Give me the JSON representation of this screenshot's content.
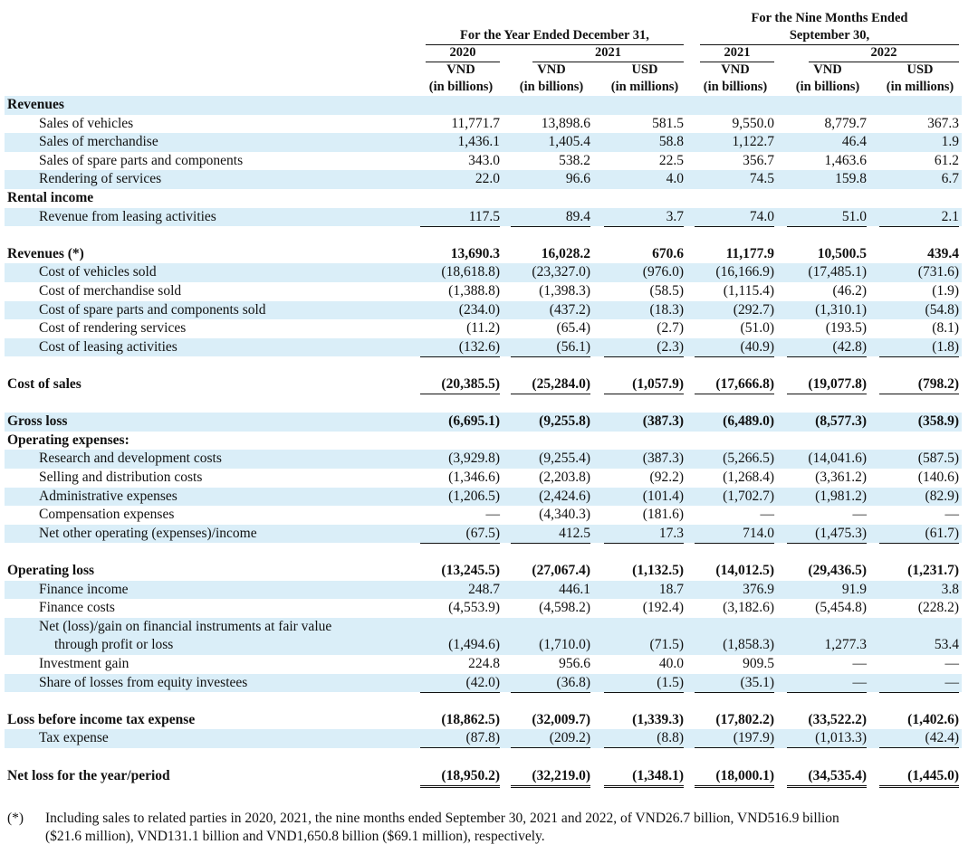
{
  "header": {
    "groups": [
      {
        "title": [
          "For the Year Ended December 31,"
        ],
        "years": [
          "2020",
          "2021"
        ]
      },
      {
        "title": [
          "For the Nine Months Ended",
          "September 30,"
        ],
        "years": [
          "2021",
          "2022"
        ]
      }
    ],
    "columns": [
      {
        "currency": "VND",
        "unit": "(in billions)"
      },
      {
        "currency": "VND",
        "unit": "(in billions)"
      },
      {
        "currency": "USD",
        "unit": "(in millions)"
      },
      {
        "currency": "VND",
        "unit": "(in billions)"
      },
      {
        "currency": "VND",
        "unit": "(in billions)"
      },
      {
        "currency": "USD",
        "unit": "(in millions)"
      }
    ]
  },
  "rows": [
    {
      "label": [
        "Revenues"
      ]
    },
    {
      "label": [
        "Sales of vehicles"
      ],
      "values": [
        "11,771.7",
        "13,898.6",
        "581.5",
        "9,550.0",
        "8,779.7",
        "367.3"
      ]
    },
    {
      "label": [
        "Sales of merchandise"
      ],
      "values": [
        "1,436.1",
        "1,405.4",
        "58.8",
        "1,122.7",
        "46.4",
        "1.9"
      ]
    },
    {
      "label": [
        "Sales of spare parts and components"
      ],
      "values": [
        "343.0",
        "538.2",
        "22.5",
        "356.7",
        "1,463.6",
        "61.2"
      ]
    },
    {
      "label": [
        "Rendering of services"
      ],
      "values": [
        "22.0",
        "96.6",
        "4.0",
        "74.5",
        "159.8",
        "6.7"
      ]
    },
    {
      "label": [
        "Rental income"
      ]
    },
    {
      "label": [
        "Revenue from leasing activities"
      ],
      "values": [
        "117.5",
        "89.4",
        "3.7",
        "74.0",
        "51.0",
        "2.1"
      ]
    },
    {
      "label": [
        "Revenues (*)"
      ],
      "values": [
        "13,690.3",
        "16,028.2",
        "670.6",
        "11,177.9",
        "10,500.5",
        "439.4"
      ]
    },
    {
      "label": [
        "Cost of vehicles sold"
      ],
      "values": [
        "(18,618.8)",
        "(23,327.0)",
        "(976.0)",
        "(16,166.9)",
        "(17,485.1)",
        "(731.6)"
      ]
    },
    {
      "label": [
        "Cost of merchandise sold"
      ],
      "values": [
        "(1,388.8)",
        "(1,398.3)",
        "(58.5)",
        "(1,115.4)",
        "(46.2)",
        "(1.9)"
      ]
    },
    {
      "label": [
        "Cost of spare parts and components sold"
      ],
      "values": [
        "(234.0)",
        "(437.2)",
        "(18.3)",
        "(292.7)",
        "(1,310.1)",
        "(54.8)"
      ]
    },
    {
      "label": [
        "Cost of rendering services"
      ],
      "values": [
        "(11.2)",
        "(65.4)",
        "(2.7)",
        "(51.0)",
        "(193.5)",
        "(8.1)"
      ]
    },
    {
      "label": [
        "Cost of leasing activities"
      ],
      "values": [
        "(132.6)",
        "(56.1)",
        "(2.3)",
        "(40.9)",
        "(42.8)",
        "(1.8)"
      ]
    },
    {
      "label": [
        "Cost of sales"
      ],
      "values": [
        "(20,385.5)",
        "(25,284.0)",
        "(1,057.9)",
        "(17,666.8)",
        "(19,077.8)",
        "(798.2)"
      ]
    },
    {
      "label": [
        "Gross loss"
      ],
      "values": [
        "(6,695.1)",
        "(9,255.8)",
        "(387.3)",
        "(6,489.0)",
        "(8,577.3)",
        "(358.9)"
      ]
    },
    {
      "label": [
        "Operating expenses:"
      ]
    },
    {
      "label": [
        "Research and development costs"
      ],
      "values": [
        "(3,929.8)",
        "(9,255.4)",
        "(387.3)",
        "(5,266.5)",
        "(14,041.6)",
        "(587.5)"
      ]
    },
    {
      "label": [
        "Selling and distribution costs"
      ],
      "values": [
        "(1,346.6)",
        "(2,203.8)",
        "(92.2)",
        "(1,268.4)",
        "(3,361.2)",
        "(140.6)"
      ]
    },
    {
      "label": [
        "Administrative expenses"
      ],
      "values": [
        "(1,206.5)",
        "(2,424.6)",
        "(101.4)",
        "(1,702.7)",
        "(1,981.2)",
        "(82.9)"
      ]
    },
    {
      "label": [
        "Compensation expenses"
      ],
      "values": [
        "—",
        "(4,340.3)",
        "(181.6)",
        "—",
        "—",
        "—"
      ]
    },
    {
      "label": [
        "Net other operating (expenses)/income"
      ],
      "values": [
        "(67.5)",
        "412.5",
        "17.3",
        "714.0",
        "(1,475.3)",
        "(61.7)"
      ]
    },
    {
      "label": [
        "Operating loss"
      ],
      "values": [
        "(13,245.5)",
        "(27,067.4)",
        "(1,132.5)",
        "(14,012.5)",
        "(29,436.5)",
        "(1,231.7)"
      ]
    },
    {
      "label": [
        "Finance income"
      ],
      "values": [
        "248.7",
        "446.1",
        "18.7",
        "376.9",
        "91.9",
        "3.8"
      ]
    },
    {
      "label": [
        "Finance costs"
      ],
      "values": [
        "(4,553.9)",
        "(4,598.2)",
        "(192.4)",
        "(3,182.6)",
        "(5,454.8)",
        "(228.2)"
      ]
    },
    {
      "label": [
        "Net (loss)/gain on financial instruments at fair value",
        "through profit or loss"
      ],
      "values": [
        "(1,494.6)",
        "(1,710.0)",
        "(71.5)",
        "(1,858.3)",
        "1,277.3",
        "53.4"
      ]
    },
    {
      "label": [
        "Investment gain"
      ],
      "values": [
        "224.8",
        "956.6",
        "40.0",
        "909.5",
        "—",
        "—"
      ]
    },
    {
      "label": [
        "Share of losses from equity investees"
      ],
      "values": [
        "(42.0)",
        "(36.8)",
        "(1.5)",
        "(35.1)",
        "—",
        "—"
      ]
    },
    {
      "label": [
        "Loss before income tax expense"
      ],
      "values": [
        "(18,862.5)",
        "(32,009.7)",
        "(1,339.3)",
        "(17,802.2)",
        "(33,522.2)",
        "(1,402.6)"
      ]
    },
    {
      "label": [
        "Tax expense"
      ],
      "values": [
        "(87.8)",
        "(209.2)",
        "(8.8)",
        "(197.9)",
        "(1,013.3)",
        "(42.4)"
      ]
    },
    {
      "label": [
        "Net loss for the year/period"
      ],
      "values": [
        "(18,950.2)",
        "(32,219.0)",
        "(1,348.1)",
        "(18,000.1)",
        "(34,535.4)",
        "(1,445.0)"
      ]
    }
  ],
  "footnote": {
    "mark": "(*)",
    "lines": [
      "Including sales to related parties in 2020, 2021, the nine months ended September 30, 2021 and 2022, of VND26.7 billion, VND516.9 billion",
      "($21.6 million), VND131.1 billion and VND1,650.8 billion ($69.1 million), respectively."
    ]
  }
}
